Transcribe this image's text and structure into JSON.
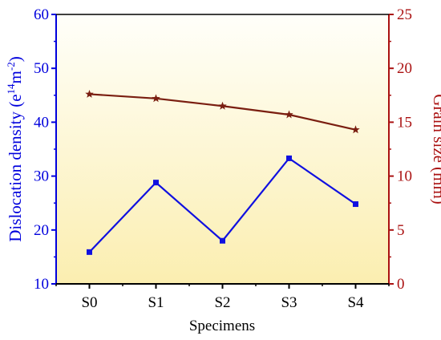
{
  "chart_data": {
    "type": "line",
    "categories": [
      "S0",
      "S1",
      "S2",
      "S3",
      "S4"
    ],
    "xlabel": "Specimens",
    "left_axis": {
      "label_main": "Dislocation density (e",
      "label_sup1": "14",
      "label_mid": "m",
      "label_sup2": "-2",
      "label_end": ")",
      "ylim": [
        10,
        60
      ],
      "ticks": [
        10,
        20,
        30,
        40,
        50,
        60
      ],
      "color": "#0000dd"
    },
    "right_axis": {
      "label": "Grain size (mm)",
      "ylim": [
        0,
        25
      ],
      "ticks": [
        0,
        5,
        10,
        15,
        20,
        25
      ],
      "color": "#aa1111"
    },
    "series": [
      {
        "axis": "left",
        "values": [
          15.9,
          28.8,
          18.0,
          33.3,
          24.8
        ],
        "color": "#1010e0",
        "marker": "square"
      },
      {
        "axis": "right",
        "values": [
          17.6,
          17.2,
          16.5,
          15.7,
          14.3
        ],
        "color": "#7a1e10",
        "marker": "star"
      }
    ],
    "background_gradient": [
      "#fffffa",
      "#fbeeb0"
    ],
    "grid": false,
    "legend": "none"
  }
}
